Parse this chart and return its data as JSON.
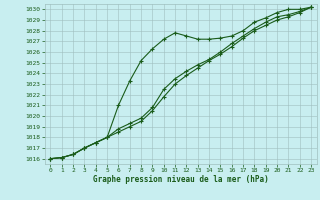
{
  "title": "Graphe pression niveau de la mer (hPa)",
  "bg_color": "#c8eef0",
  "grid_color": "#9fbfbf",
  "line_color": "#1a5c1a",
  "xlim": [
    -0.5,
    23.5
  ],
  "ylim": [
    1015.5,
    1030.5
  ],
  "xticks": [
    0,
    1,
    2,
    3,
    4,
    5,
    6,
    7,
    8,
    9,
    10,
    11,
    12,
    13,
    14,
    15,
    16,
    17,
    18,
    19,
    20,
    21,
    22,
    23
  ],
  "yticks": [
    1016,
    1017,
    1018,
    1019,
    1020,
    1021,
    1022,
    1023,
    1024,
    1025,
    1026,
    1027,
    1028,
    1029,
    1030
  ],
  "line1_x": [
    0,
    1,
    2,
    3,
    4,
    5,
    6,
    7,
    8,
    9,
    10,
    11,
    12,
    13,
    14,
    15,
    16,
    17,
    18,
    19,
    20,
    21,
    22,
    23
  ],
  "line1_y": [
    1016.0,
    1016.1,
    1016.4,
    1017.0,
    1017.5,
    1018.0,
    1021.0,
    1023.3,
    1025.2,
    1026.3,
    1027.2,
    1027.8,
    1027.5,
    1027.2,
    1027.2,
    1027.3,
    1027.5,
    1028.0,
    1028.8,
    1029.2,
    1029.7,
    1030.0,
    1030.0,
    1030.2
  ],
  "line2_x": [
    0,
    1,
    2,
    3,
    4,
    5,
    6,
    7,
    8,
    9,
    10,
    11,
    12,
    13,
    14,
    15,
    16,
    17,
    18,
    19,
    20,
    21,
    22,
    23
  ],
  "line2_y": [
    1016.0,
    1016.1,
    1016.4,
    1017.0,
    1017.5,
    1018.0,
    1018.8,
    1019.3,
    1019.8,
    1020.8,
    1022.5,
    1023.5,
    1024.2,
    1024.8,
    1025.3,
    1026.0,
    1026.8,
    1027.5,
    1028.2,
    1028.8,
    1029.3,
    1029.5,
    1029.8,
    1030.2
  ],
  "line3_x": [
    0,
    1,
    2,
    3,
    4,
    5,
    6,
    7,
    8,
    9,
    10,
    11,
    12,
    13,
    14,
    15,
    16,
    17,
    18,
    19,
    20,
    21,
    22,
    23
  ],
  "line3_y": [
    1016.0,
    1016.1,
    1016.4,
    1017.0,
    1017.5,
    1018.0,
    1018.5,
    1019.0,
    1019.5,
    1020.5,
    1021.8,
    1023.0,
    1023.8,
    1024.5,
    1025.2,
    1025.8,
    1026.5,
    1027.3,
    1028.0,
    1028.5,
    1029.0,
    1029.3,
    1029.7,
    1030.2
  ]
}
